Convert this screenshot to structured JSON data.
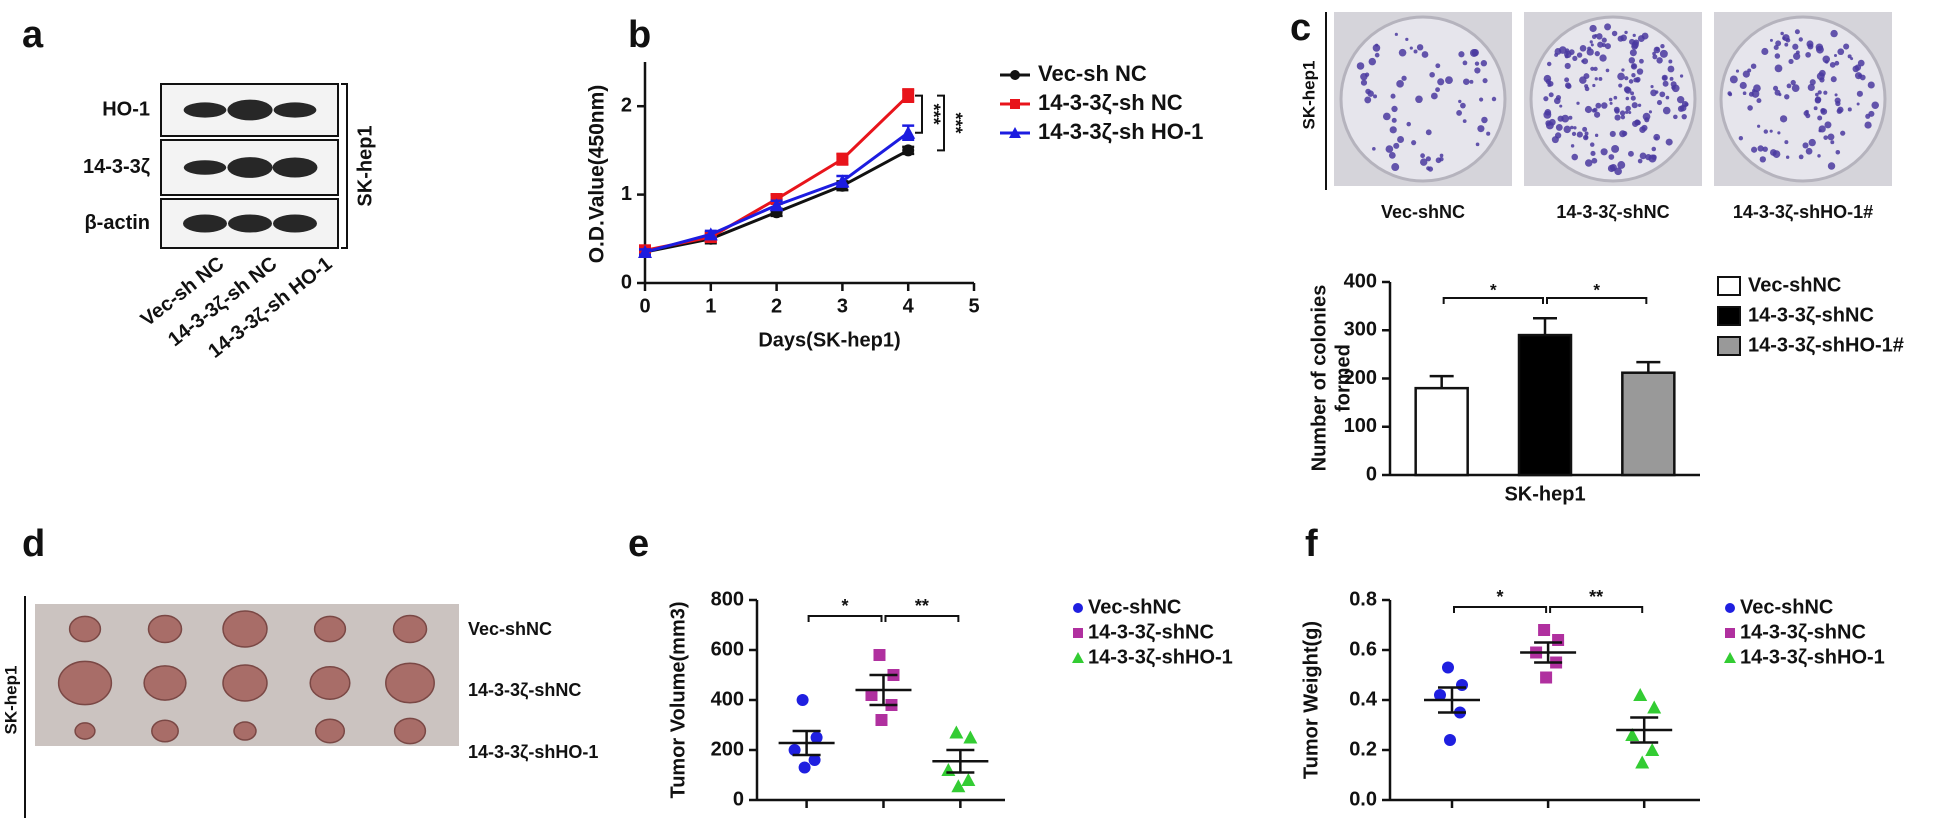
{
  "panels": {
    "a": {
      "letter": "a",
      "rows": [
        "HO-1",
        "14-3-3ζ",
        "β-actin"
      ],
      "side_label": "SK-hep1",
      "lanes": [
        "Vec-sh NC",
        "14-3-3ζ-sh NC",
        "14-3-3ζ-sh HO-1"
      ]
    },
    "c": {
      "letter": "c",
      "side_label": "SK-hep1",
      "plates": [
        "Vec-shNC",
        "14-3-3ζ-shNC",
        "14-3-3ζ-shHO-1#"
      ]
    },
    "d": {
      "letter": "d",
      "side_label": "SK-hep1",
      "rows": [
        "Vec-shNC",
        "14-3-3ζ-shNC",
        "14-3-3ζ-shHO-1"
      ]
    }
  },
  "chart_data": [
    {
      "panel": "b",
      "type": "line",
      "x_label": "Days(SK-hep1)",
      "y_label": "O.D.Value(450nm)",
      "x": [
        0,
        1,
        2,
        3,
        4
      ],
      "xlim": [
        0,
        5
      ],
      "xticks": [
        0,
        1,
        2,
        3,
        4,
        5
      ],
      "ylim": [
        0,
        2.5
      ],
      "yticks": [
        0,
        1,
        2
      ],
      "series": [
        {
          "name": "Vec-sh NC",
          "color": "#111111",
          "marker": "circle",
          "values": [
            0.35,
            0.5,
            0.8,
            1.1,
            1.5
          ],
          "errors": [
            0.03,
            0.05,
            0.04,
            0.05,
            0.04
          ]
        },
        {
          "name": "14-3-3ζ-sh NC",
          "color": "#e8141b",
          "marker": "square",
          "values": [
            0.37,
            0.52,
            0.95,
            1.4,
            2.12
          ],
          "errors": [
            0.03,
            0.05,
            0.05,
            0.06,
            0.07
          ]
        },
        {
          "name": "14-3-3ζ-sh HO-1",
          "color": "#1c1ce0",
          "marker": "triangle",
          "values": [
            0.35,
            0.55,
            0.88,
            1.15,
            1.7
          ],
          "errors": [
            0.03,
            0.04,
            0.05,
            0.06,
            0.08
          ]
        }
      ],
      "annotations": [
        "***",
        "***"
      ]
    },
    {
      "type": "bar",
      "y_label": [
        "Number of colonies",
        "formed"
      ],
      "categories": [
        "SK-hep1"
      ],
      "ylim": [
        0,
        400
      ],
      "yticks": [
        0,
        100,
        200,
        300,
        400
      ],
      "series": [
        {
          "name": "Vec-shNC",
          "color": "#ffffff",
          "values": [
            180
          ],
          "errors": [
            25
          ]
        },
        {
          "name": "14-3-3ζ-shNC",
          "color": "#000000",
          "values": [
            290
          ],
          "errors": [
            35
          ]
        },
        {
          "name": "14-3-3ζ-shHO-1#",
          "color": "#999999",
          "values": [
            212
          ],
          "errors": [
            22
          ]
        }
      ],
      "annotations": [
        "*",
        "*"
      ],
      "legend": "right"
    },
    {
      "panel": "e",
      "type": "scatter",
      "y_label": "Tumor Volume(mm3)",
      "ylim": [
        0,
        800
      ],
      "yticks": [
        0,
        200,
        400,
        600,
        800
      ],
      "series": [
        {
          "name": "Vec-shNC",
          "color": "#1f1fe0",
          "marker": "circle",
          "values": [
            400,
            250,
            200,
            160,
            130
          ],
          "mean": 228,
          "error": 48
        },
        {
          "name": "14-3-3ζ-shNC",
          "color": "#b0309f",
          "marker": "square",
          "values": [
            580,
            500,
            420,
            380,
            320
          ],
          "mean": 440,
          "error": 60
        },
        {
          "name": "14-3-3ζ-shHO-1",
          "color": "#33cc33",
          "marker": "triangle",
          "values": [
            270,
            250,
            120,
            80,
            55
          ],
          "mean": 155,
          "error": 45
        }
      ],
      "annotations": [
        "*",
        "**"
      ],
      "legend": "right"
    },
    {
      "panel": "f",
      "type": "scatter",
      "y_label": "Tumor Weight(g)",
      "ylim": [
        0,
        0.8
      ],
      "yticks": [
        {
          "value": 0,
          "label": "0.0"
        },
        0.2,
        0.4,
        0.6,
        0.8
      ],
      "series": [
        {
          "name": "Vec-shNC",
          "color": "#1f1fe0",
          "marker": "circle",
          "values": [
            0.53,
            0.46,
            0.42,
            0.35,
            0.24
          ],
          "mean": 0.4,
          "error": 0.05
        },
        {
          "name": "14-3-3ζ-shNC",
          "color": "#b0309f",
          "marker": "square",
          "values": [
            0.68,
            0.64,
            0.59,
            0.55,
            0.49
          ],
          "mean": 0.59,
          "error": 0.04
        },
        {
          "name": "14-3-3ζ-shHO-1",
          "color": "#33cc33",
          "marker": "triangle",
          "values": [
            0.42,
            0.37,
            0.26,
            0.2,
            0.15
          ],
          "mean": 0.28,
          "error": 0.05
        }
      ],
      "annotations": [
        "*",
        "**"
      ],
      "legend": "right"
    }
  ]
}
